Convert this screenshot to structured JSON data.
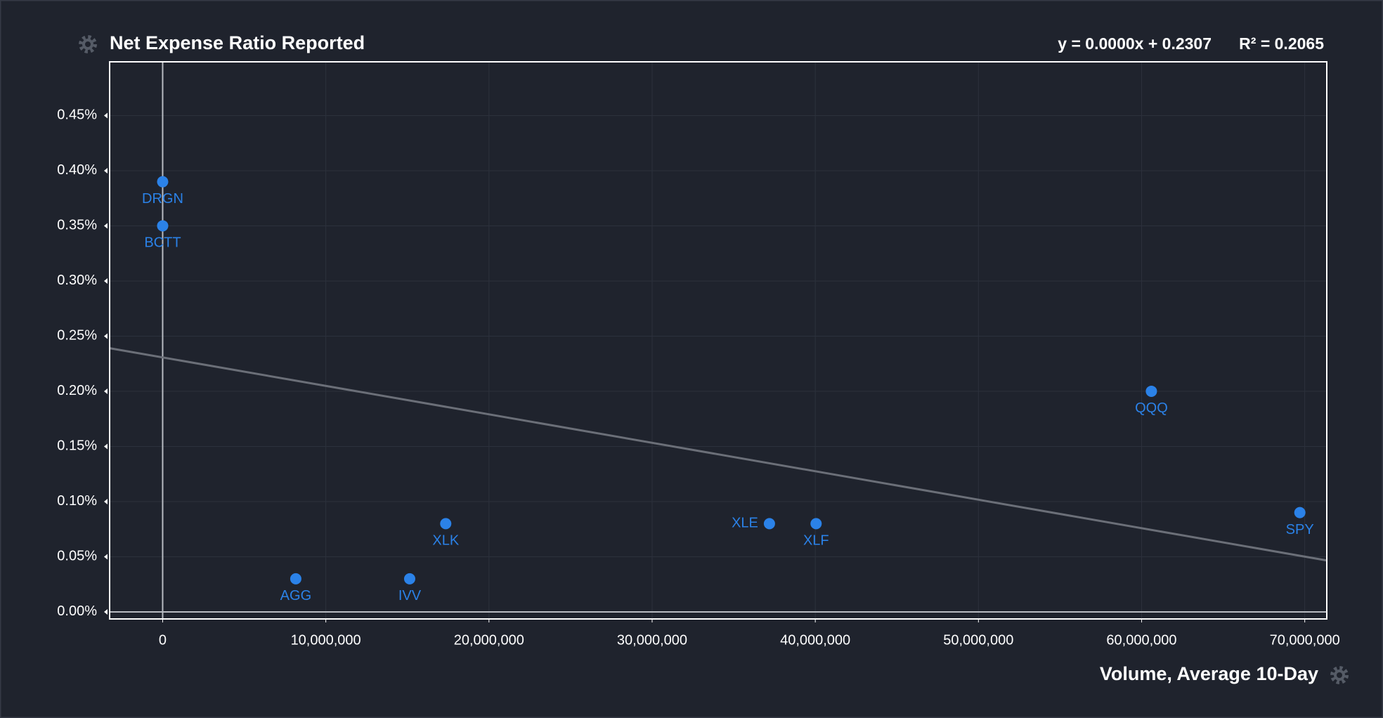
{
  "chart_data": {
    "type": "scatter",
    "title": "Net Expense Ratio Reported",
    "x_label": "Volume, Average 10-Day",
    "trendline": {
      "label": "y = 0.0000x + 0.2307",
      "r2_label": "R² = 0.2065",
      "intercept": 0.2307,
      "slope": -2.58e-09,
      "color": "#6b6f78"
    },
    "color": "#2b82e8",
    "point_labels": [
      "DRGN",
      "BCTT",
      "AGG",
      "IVV",
      "XLK",
      "XLE",
      "XLF",
      "QQQ",
      "SPY"
    ],
    "x": [
      0,
      0,
      8160000,
      15140000,
      17350000,
      37190000,
      40050000,
      60600000,
      69700000
    ],
    "values": [
      0.39,
      0.35,
      0.03,
      0.03,
      0.08,
      0.08,
      0.08,
      0.2,
      0.09
    ],
    "xlim": [
      -3250000,
      71350000
    ],
    "ylim": [
      -0.0064,
      0.4987
    ],
    "xticks": [
      0,
      {
        "value": 10000000,
        "label": "10,000,000"
      },
      {
        "value": 20000000,
        "label": "20,000,000"
      },
      {
        "value": 30000000,
        "label": "30,000,000"
      },
      {
        "value": 40000000,
        "label": "40,000,000"
      },
      {
        "value": 50000000,
        "label": "50,000,000"
      },
      {
        "value": 60000000,
        "label": "60,000,000"
      },
      {
        "value": 70000000,
        "label": "70,000,000"
      }
    ],
    "yticks": [
      {
        "value": 0,
        "label": "0.00%"
      },
      {
        "value": 0.05,
        "label": "0.05%"
      },
      {
        "value": 0.1,
        "label": "0.10%"
      },
      {
        "value": 0.15,
        "label": "0.15%"
      },
      {
        "value": 0.2,
        "label": "0.20%"
      },
      {
        "value": 0.25,
        "label": "0.25%"
      },
      {
        "value": 0.3,
        "label": "0.30%"
      },
      {
        "value": 0.35,
        "label": "0.35%"
      },
      {
        "value": 0.4,
        "label": "0.40%"
      },
      {
        "value": 0.45,
        "label": "0.45%"
      }
    ],
    "grid": true
  }
}
